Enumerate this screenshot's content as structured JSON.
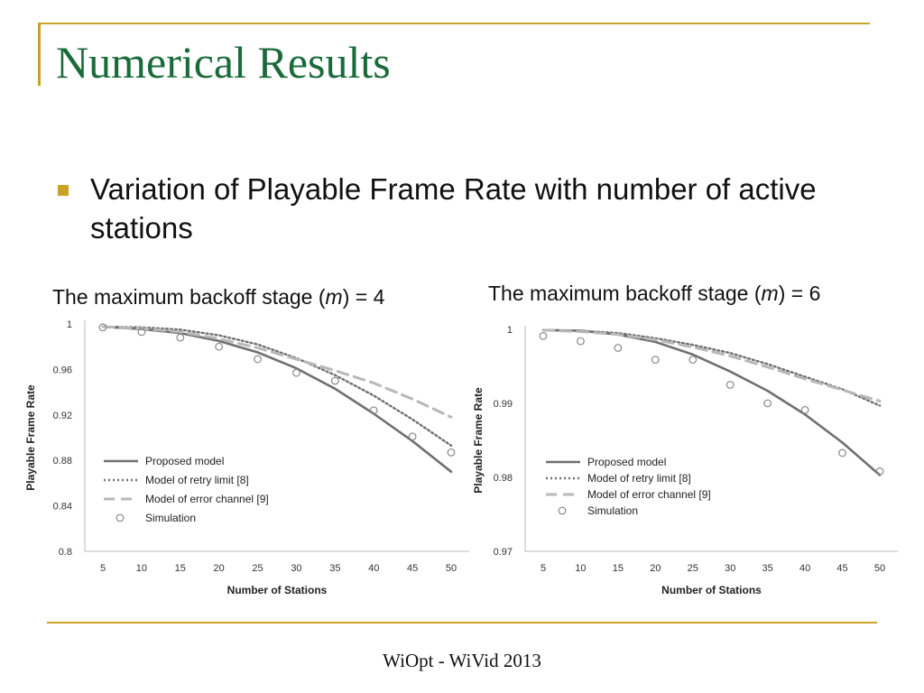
{
  "slide": {
    "title": "Numerical Results",
    "bullet": "Variation of Playable Frame Rate with number of active stations",
    "footer": "WiOpt - WiVid 2013"
  },
  "captions": {
    "left": {
      "prefix": "The maximum backoff stage (",
      "var": "m",
      "suffix": ") = 4"
    },
    "right": {
      "prefix": "The maximum backoff stage (",
      "var": "m",
      "suffix": ") = 6"
    }
  },
  "colors": {
    "accent": "#c9a227",
    "title": "#1a6b3a",
    "proposed": "#707070",
    "retry": "#707070",
    "error": "#b8b8b8",
    "simulation": "#888888"
  },
  "chart_data": [
    {
      "type": "line",
      "xlabel": "Number of Stations",
      "ylabel": "Playable Frame Rate",
      "x": [
        5,
        10,
        15,
        20,
        25,
        30,
        35,
        40,
        45,
        50
      ],
      "xticks": [
        "5",
        "10",
        "15",
        "20",
        "25",
        "30",
        "35",
        "40",
        "45",
        "50"
      ],
      "ylim": [
        0.8,
        1.0
      ],
      "yticks": [
        "0.8",
        "0.84",
        "0.88",
        "0.92",
        "0.96",
        "1"
      ],
      "grid": false,
      "legend": "bottom-left",
      "series": [
        {
          "name": "Proposed model",
          "style": "solid",
          "values": [
            0.9975,
            0.9955,
            0.992,
            0.985,
            0.975,
            0.961,
            0.943,
            0.921,
            0.897,
            0.87
          ]
        },
        {
          "name": "Model of retry limit [8]",
          "style": "dotted",
          "values": [
            0.9975,
            0.997,
            0.995,
            0.99,
            0.982,
            0.97,
            0.955,
            0.937,
            0.916,
            0.893
          ]
        },
        {
          "name": "Model of error channel [9]",
          "style": "dashed",
          "values": [
            0.9975,
            0.996,
            0.993,
            0.987,
            0.979,
            0.969,
            0.959,
            0.948,
            0.934,
            0.918
          ]
        },
        {
          "name": "Simulation",
          "style": "markers",
          "values": [
            0.997,
            0.993,
            0.988,
            0.98,
            0.969,
            0.957,
            0.95,
            0.924,
            0.901,
            0.887
          ]
        }
      ]
    },
    {
      "type": "line",
      "xlabel": "Number of Stations",
      "ylabel": "Playable Frame Rate",
      "x": [
        5,
        10,
        15,
        20,
        25,
        30,
        35,
        40,
        45,
        50
      ],
      "xticks": [
        "5",
        "10",
        "15",
        "20",
        "25",
        "30",
        "35",
        "40",
        "45",
        "50"
      ],
      "ylim": [
        0.97,
        1.0
      ],
      "yticks": [
        "0.97",
        "0.98",
        "0.99",
        "1"
      ],
      "grid": false,
      "legend": "bottom-left",
      "series": [
        {
          "name": "Proposed model",
          "style": "solid",
          "values": [
            0.9999,
            0.9998,
            0.9993,
            0.9983,
            0.9966,
            0.9943,
            0.9917,
            0.9885,
            0.9847,
            0.9803
          ]
        },
        {
          "name": "Model of retry limit [8]",
          "style": "dotted",
          "values": [
            0.9999,
            0.9998,
            0.9995,
            0.9988,
            0.9979,
            0.9968,
            0.9953,
            0.9936,
            0.9919,
            0.9897
          ]
        },
        {
          "name": "Model of error channel [9]",
          "style": "dashed",
          "values": [
            0.9999,
            0.9997,
            0.9993,
            0.9986,
            0.9976,
            0.9964,
            0.9949,
            0.9933,
            0.9918,
            0.9903
          ]
        },
        {
          "name": "Simulation",
          "style": "markers",
          "values": [
            0.9991,
            0.9984,
            0.9975,
            0.9959,
            0.9959,
            0.9925,
            0.99,
            0.9891,
            0.9833,
            0.9808
          ]
        }
      ]
    }
  ]
}
